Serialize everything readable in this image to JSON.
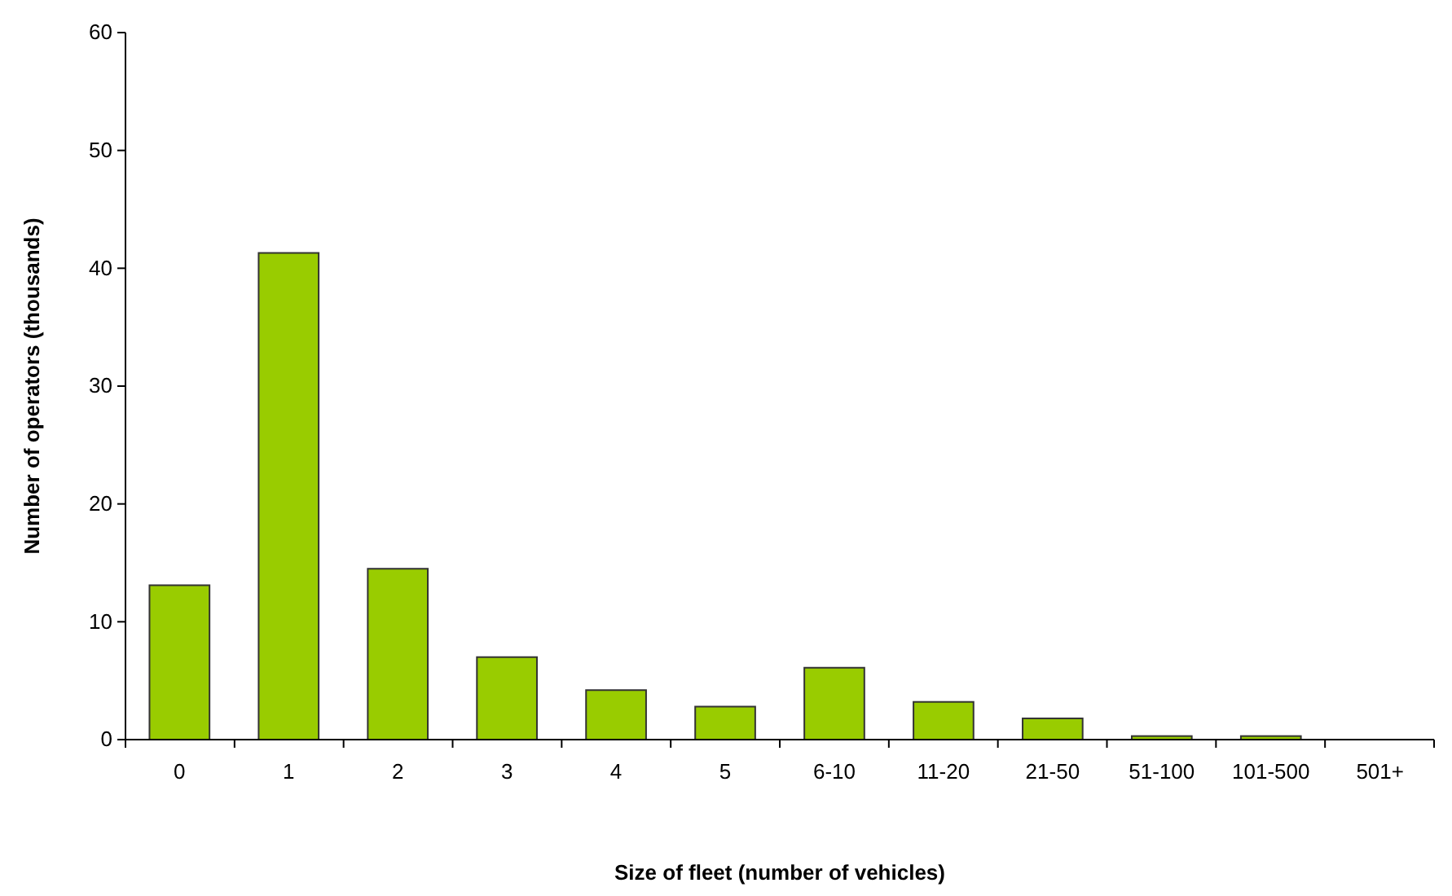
{
  "chart_data": {
    "type": "bar",
    "xlabel": "Size of fleet (number of vehicles)",
    "ylabel": "Number of operators (thousands)",
    "categories": [
      "0",
      "1",
      "2",
      "3",
      "4",
      "5",
      "6-10",
      "11-20",
      "21-50",
      "51-100",
      "101-500",
      "501+"
    ],
    "values": [
      13.1,
      41.3,
      14.5,
      7,
      4.2,
      2.8,
      6.1,
      3.2,
      1.8,
      0.3,
      0.3,
      null
    ],
    "color": "#99cc00",
    "ylim": [
      0,
      60
    ],
    "yticks": [
      0,
      10,
      20,
      30,
      40,
      50,
      60
    ],
    "grid": false
  }
}
